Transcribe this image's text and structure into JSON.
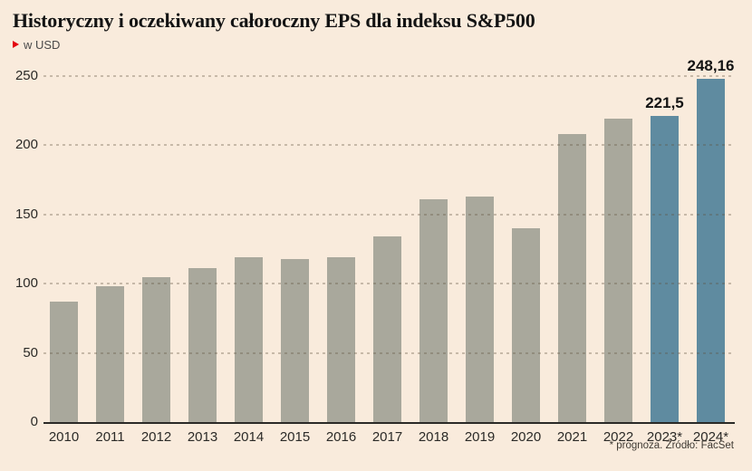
{
  "header": {
    "title": "Historyczny i oczekiwany całoroczny EPS dla indeksu S&P500",
    "unit": "w USD"
  },
  "footer": {
    "note": "* prognoza. Źródło: FacSet"
  },
  "colors": {
    "background": "#f9ebdc",
    "bar_default": "#a9a89c",
    "bar_forecast": "#5f8ba0",
    "axis_line": "#2b2a27",
    "grid_dash": "rgba(94,80,60,0.32)",
    "title_text": "#141414",
    "tick_text": "#2b2a27",
    "subtitle_text": "#4a4a4a",
    "footnote_text": "#3f3a33",
    "accent_red": "#e3000f"
  },
  "chart_data": {
    "type": "bar",
    "title": "Historyczny i oczekiwany całoroczny EPS dla indeksu S&P500",
    "unit": "w USD",
    "categories": [
      "2010",
      "2011",
      "2012",
      "2013",
      "2014",
      "2015",
      "2016",
      "2017",
      "2018",
      "2019",
      "2020",
      "2021",
      "2022",
      "2023*",
      "2024*"
    ],
    "values": [
      87,
      98,
      105,
      111,
      119,
      118,
      119,
      134,
      161,
      163,
      140,
      208,
      219,
      221.5,
      248.16
    ],
    "value_labels": [
      "",
      "",
      "",
      "",
      "",
      "",
      "",
      "",
      "",
      "",
      "",
      "",
      "",
      "221,5",
      "248,16"
    ],
    "forecast_indices": [
      13,
      14
    ],
    "xlabel": "",
    "ylabel": "w USD",
    "ylim": [
      0,
      250
    ],
    "yticks": [
      0,
      50,
      100,
      150,
      200,
      250
    ],
    "grid": "horizontal-dashed",
    "legend": "none",
    "source": "* prognoza. Źródło: FacSet"
  }
}
